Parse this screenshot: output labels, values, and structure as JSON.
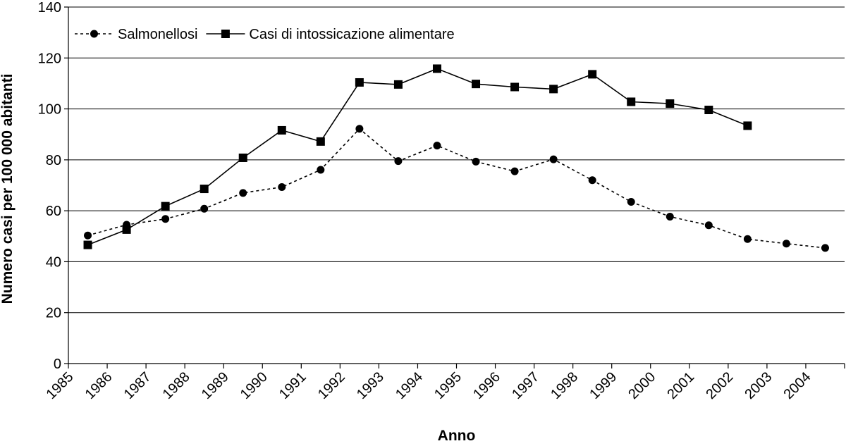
{
  "chart_data": {
    "type": "line",
    "title": "",
    "xlabel": "Anno",
    "ylabel": "Numero casi per 100 000 abitanti",
    "ylim": [
      0,
      140
    ],
    "yticks": [
      0,
      20,
      40,
      60,
      80,
      100,
      120,
      140
    ],
    "categories": [
      "1985",
      "1986",
      "1987",
      "1988",
      "1989",
      "1990",
      "1991",
      "1992",
      "1993",
      "1994",
      "1995",
      "1996",
      "1997",
      "1998",
      "1999",
      "2000",
      "2001",
      "2002",
      "2003",
      "2004"
    ],
    "grid": "horizontal",
    "legend_position": "top-left",
    "series": [
      {
        "name": "Salmonellosi",
        "line_style": "dashed",
        "marker": "circle",
        "color": "#000000",
        "x": [
          1985.5,
          1986.5,
          1987.5,
          1988.5,
          1989.5,
          1990.5,
          1991.5,
          1992.5,
          1993.5,
          1994.5,
          1995.5,
          1996.5,
          1997.5,
          1998.5,
          1999.5,
          2000.5,
          2001.5,
          2002.5,
          2003.5,
          2004.5
        ],
        "values": [
          50.3,
          54.5,
          56.8,
          60.8,
          67,
          69.3,
          76.1,
          92.2,
          79.5,
          85.6,
          79.3,
          75.5,
          80.2,
          72,
          63.5,
          57.7,
          54.3,
          48.9,
          47.1,
          45.4
        ]
      },
      {
        "name": "Casi di intossicazione alimentare",
        "line_style": "solid",
        "marker": "square",
        "color": "#000000",
        "x": [
          1985.5,
          1986.5,
          1987.5,
          1988.5,
          1989.5,
          1990.5,
          1991.5,
          1992.5,
          1993.5,
          1994.5,
          1995.5,
          1996.5,
          1997.5,
          1998.5,
          1999.5,
          2000.5,
          2001.5,
          2002.5
        ],
        "values": [
          46.6,
          52.6,
          61.8,
          68.6,
          80.8,
          91.6,
          87.2,
          110.4,
          109.6,
          115.8,
          109.8,
          108.6,
          107.8,
          113.6,
          102.8,
          102.1,
          99.6,
          93.4
        ]
      }
    ]
  }
}
